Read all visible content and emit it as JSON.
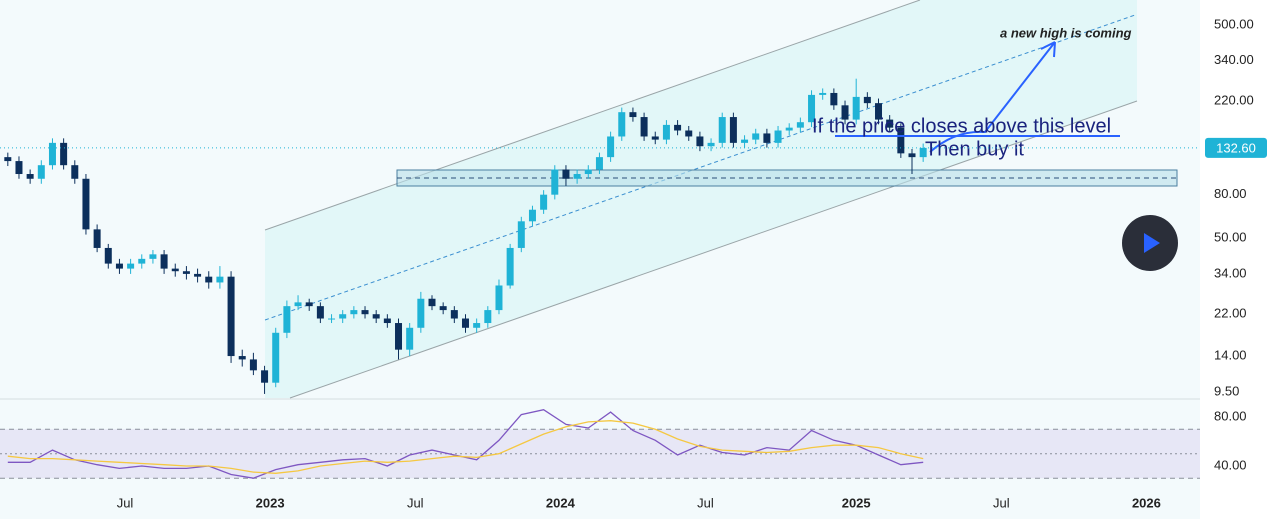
{
  "chart_data": {
    "type": "candlestick",
    "log_scale": true,
    "up_color": "#1fb3d6",
    "down_color": "#0c2f5c",
    "x": [
      0,
      2,
      4,
      6,
      8,
      10,
      12,
      14,
      16,
      18,
      20,
      22,
      24,
      26,
      28,
      30,
      32,
      34,
      36,
      38,
      40,
      42,
      44,
      46,
      48,
      50,
      52,
      54,
      56,
      58,
      60,
      62,
      64,
      66,
      68,
      70,
      72,
      74,
      76,
      78,
      80,
      82,
      84,
      86,
      88,
      90,
      92,
      94,
      96,
      98,
      100,
      102,
      104,
      106,
      108,
      110,
      112,
      114,
      116,
      118,
      120,
      122,
      124,
      126,
      128,
      130,
      132,
      134,
      136,
      138,
      140,
      142,
      144,
      146,
      148,
      150,
      152,
      154,
      156,
      158,
      160,
      162,
      164
    ],
    "open": [
      120,
      115,
      100,
      95,
      110,
      140,
      110,
      95,
      55,
      45,
      38,
      36,
      38,
      40,
      42,
      36,
      35,
      34,
      33,
      31,
      33,
      14,
      13.5,
      12,
      10.5,
      18,
      24,
      25,
      24,
      21,
      21,
      22,
      23,
      22,
      21,
      20,
      15,
      19,
      26,
      24,
      23,
      21,
      19,
      20,
      23,
      30,
      45,
      60,
      68,
      80,
      105,
      95,
      100,
      105,
      120,
      150,
      195,
      185,
      150,
      145,
      170,
      160,
      150,
      135,
      140,
      185,
      140,
      145,
      155,
      140,
      160,
      165,
      175,
      235,
      240,
      210,
      180,
      230,
      215,
      180,
      165,
      125,
      120
    ],
    "high": [
      126,
      121,
      105,
      116,
      147,
      147,
      116,
      100,
      58,
      47,
      40,
      40,
      42,
      44,
      44,
      38,
      37,
      36,
      35,
      37,
      35,
      15,
      14.5,
      12.6,
      19,
      25.5,
      27,
      26,
      25,
      22,
      23,
      24,
      24,
      23,
      22,
      21,
      20,
      28,
      27,
      25,
      24,
      22,
      21,
      24,
      32,
      47,
      63,
      71,
      84,
      110,
      110,
      105,
      110,
      126,
      158,
      205,
      205,
      194,
      158,
      179,
      179,
      168,
      158,
      147,
      194,
      194,
      152,
      163,
      163,
      168,
      173,
      184,
      247,
      252,
      252,
      221,
      280,
      242,
      226,
      189,
      173,
      131,
      139
    ],
    "low": [
      109,
      95,
      90,
      90,
      105,
      105,
      90,
      52,
      43,
      36,
      34,
      34,
      36,
      38,
      34,
      33,
      32,
      31,
      29,
      29,
      13,
      12.5,
      11.4,
      9.3,
      10,
      17,
      23,
      22.8,
      20,
      20,
      20,
      21,
      21,
      20,
      19,
      13.5,
      14,
      18,
      23,
      22,
      20,
      18,
      18,
      19,
      22,
      29,
      43,
      57,
      65,
      76,
      88,
      90,
      95,
      100,
      114,
      143,
      176,
      143,
      138,
      138,
      152,
      143,
      128,
      128,
      133,
      133,
      133,
      138,
      133,
      133,
      152,
      157,
      166,
      223,
      200,
      171,
      171,
      204,
      171,
      157,
      119,
      100,
      114
    ],
    "close": [
      115,
      100,
      95,
      110,
      140,
      110,
      95,
      55,
      45,
      38,
      36,
      38,
      40,
      42,
      36,
      35,
      34,
      33,
      31,
      33,
      14,
      13.5,
      12,
      10.5,
      18,
      24,
      25,
      24,
      21,
      21,
      22,
      23,
      22,
      21,
      20,
      15,
      19,
      26,
      24,
      23,
      21,
      19,
      20,
      23,
      30,
      45,
      60,
      68,
      80,
      105,
      95,
      100,
      105,
      120,
      150,
      195,
      185,
      150,
      145,
      170,
      160,
      150,
      135,
      140,
      185,
      140,
      145,
      155,
      140,
      160,
      165,
      175,
      235,
      240,
      210,
      180,
      230,
      215,
      180,
      165,
      125,
      120,
      132.6
    ],
    "xlim": [
      -1.4,
      213.6
    ],
    "xticks": [
      {
        "value": 21,
        "label": "Jul"
      },
      {
        "value": 47,
        "label": "2023"
      },
      {
        "value": 73,
        "label": "Jul"
      },
      {
        "value": 99,
        "label": "2024"
      },
      {
        "value": 125,
        "label": "Jul"
      },
      {
        "value": 152,
        "label": "2025"
      },
      {
        "value": 178,
        "label": "Jul"
      },
      {
        "value": 204,
        "label": "2026"
      }
    ],
    "ylim": [
      8.9,
      655
    ],
    "yticks": [
      {
        "value": 9.5,
        "label": "9.50"
      },
      {
        "value": 14,
        "label": "14.00"
      },
      {
        "value": 22,
        "label": "22.00"
      },
      {
        "value": 34,
        "label": "34.00"
      },
      {
        "value": 50,
        "label": "50.00"
      },
      {
        "value": 80,
        "label": "80.00"
      },
      {
        "value": 220,
        "label": "220.00"
      },
      {
        "value": 340,
        "label": "340.00"
      },
      {
        "value": 500,
        "label": "500.00"
      }
    ],
    "last_price": {
      "value": 132.6,
      "label": "132.60"
    },
    "annotations": [
      "a new high is coming",
      "If the price closes above this level",
      "Then buy it"
    ],
    "rsi": {
      "x": [
        0,
        4,
        8,
        12,
        16,
        20,
        24,
        28,
        32,
        36,
        40,
        44,
        48,
        52,
        56,
        60,
        64,
        68,
        72,
        76,
        80,
        84,
        88,
        92,
        96,
        100,
        104,
        108,
        112,
        116,
        120,
        124,
        128,
        132,
        136,
        140,
        144,
        148,
        152,
        156,
        160,
        164
      ],
      "series": [
        {
          "color": "#7e57c2",
          "values": [
            43,
            43,
            53,
            45,
            41,
            38,
            40,
            38,
            38,
            40,
            33,
            30,
            37,
            41,
            43,
            45,
            46,
            40,
            49,
            53,
            49,
            45,
            61,
            82,
            86,
            74,
            71,
            84,
            69,
            61,
            49,
            57,
            51,
            49,
            55,
            53,
            69,
            61,
            57,
            49,
            41,
            43
          ]
        },
        {
          "color": "#f5c842",
          "values": [
            48,
            46,
            46,
            45,
            44,
            43,
            42,
            41,
            40,
            40,
            38,
            35,
            34,
            36,
            40,
            42,
            44,
            43,
            44,
            46,
            48,
            47,
            50,
            58,
            66,
            72,
            76,
            77,
            75,
            70,
            62,
            56,
            53,
            52,
            51,
            52,
            55,
            57,
            57,
            55,
            50,
            46
          ]
        }
      ],
      "ylim": [
        26.9,
        93.9
      ],
      "yticks": [
        {
          "value": 80,
          "label": "80.00"
        },
        {
          "value": 40,
          "label": "40.00"
        }
      ],
      "levels": [
        70,
        50,
        30
      ]
    }
  }
}
